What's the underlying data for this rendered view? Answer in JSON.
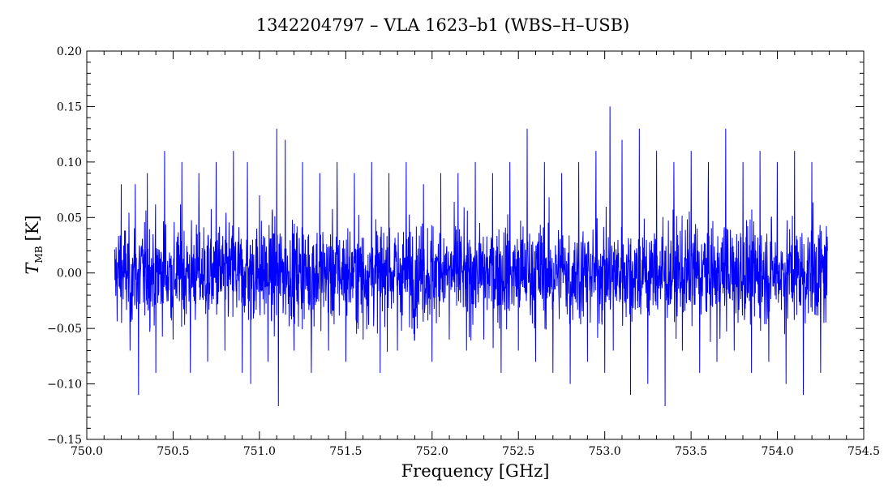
{
  "chart_data": {
    "type": "line",
    "title": "1342204797 – VLA 1623–b1 (WBS–H–USB)",
    "xlabel": "Frequency [GHz]",
    "ylabel_main": "T",
    "ylabel_sub": "MB",
    "ylabel_unit": "[K]",
    "xlim": [
      750.0,
      754.5
    ],
    "ylim": [
      -0.15,
      0.2
    ],
    "x_ticks": [
      750.0,
      750.5,
      751.0,
      751.5,
      752.0,
      752.5,
      753.0,
      753.5,
      754.0,
      754.5
    ],
    "x_tick_labels": [
      "750.0",
      "750.5",
      "751.0",
      "751.5",
      "752.0",
      "752.5",
      "753.0",
      "753.5",
      "754.0",
      "754.5"
    ],
    "y_ticks": [
      -0.15,
      -0.1,
      -0.05,
      0.0,
      0.05,
      0.1,
      0.15,
      0.2
    ],
    "y_tick_labels": [
      "−0.15",
      "−0.10",
      "−0.05",
      "0.00",
      "0.05",
      "0.10",
      "0.15",
      "0.20"
    ],
    "grid": false,
    "series": [
      {
        "color": "#0000ff",
        "x_start": 750.16,
        "x_end": 754.29,
        "x": [
          750.16,
          750.2,
          750.25,
          750.28,
          750.3,
          750.35,
          750.4,
          750.45,
          750.5,
          750.55,
          750.6,
          750.65,
          750.7,
          750.75,
          750.8,
          750.85,
          750.9,
          750.93,
          750.95,
          751.0,
          751.05,
          751.1,
          751.11,
          751.15,
          751.2,
          751.25,
          751.3,
          751.35,
          751.4,
          751.45,
          751.5,
          751.55,
          751.6,
          751.65,
          751.7,
          751.75,
          751.8,
          751.85,
          751.9,
          751.95,
          752.0,
          752.05,
          752.1,
          752.15,
          752.2,
          752.25,
          752.3,
          752.35,
          752.4,
          752.45,
          752.5,
          752.55,
          752.6,
          752.65,
          752.7,
          752.75,
          752.8,
          752.85,
          752.9,
          752.95,
          753.0,
          753.03,
          753.05,
          753.1,
          753.15,
          753.2,
          753.25,
          753.3,
          753.35,
          753.4,
          753.45,
          753.5,
          753.55,
          753.6,
          753.65,
          753.7,
          753.75,
          753.8,
          753.85,
          753.9,
          753.95,
          754.0,
          754.05,
          754.1,
          754.15,
          754.2,
          754.25,
          754.29
        ],
        "y": [
          0.02,
          0.08,
          -0.07,
          0.08,
          -0.11,
          0.09,
          -0.09,
          0.11,
          -0.06,
          0.1,
          -0.09,
          0.09,
          -0.08,
          0.1,
          -0.07,
          0.11,
          -0.09,
          0.1,
          -0.1,
          0.07,
          -0.08,
          0.13,
          -0.12,
          0.12,
          -0.07,
          0.1,
          -0.09,
          0.09,
          -0.07,
          0.1,
          -0.08,
          0.09,
          -0.06,
          0.1,
          -0.09,
          0.09,
          -0.07,
          0.1,
          -0.06,
          0.08,
          -0.08,
          0.09,
          -0.06,
          0.09,
          -0.07,
          0.1,
          -0.06,
          0.09,
          -0.09,
          0.1,
          -0.07,
          0.13,
          -0.08,
          0.1,
          -0.09,
          0.09,
          -0.1,
          0.1,
          -0.08,
          0.11,
          -0.09,
          0.15,
          -0.07,
          0.12,
          -0.11,
          0.13,
          -0.1,
          0.11,
          -0.12,
          0.1,
          -0.07,
          0.11,
          -0.09,
          0.1,
          -0.08,
          0.13,
          -0.07,
          0.1,
          -0.09,
          0.11,
          -0.08,
          0.1,
          -0.1,
          0.11,
          -0.11,
          0.1,
          -0.09,
          0.02
        ]
      }
    ]
  }
}
